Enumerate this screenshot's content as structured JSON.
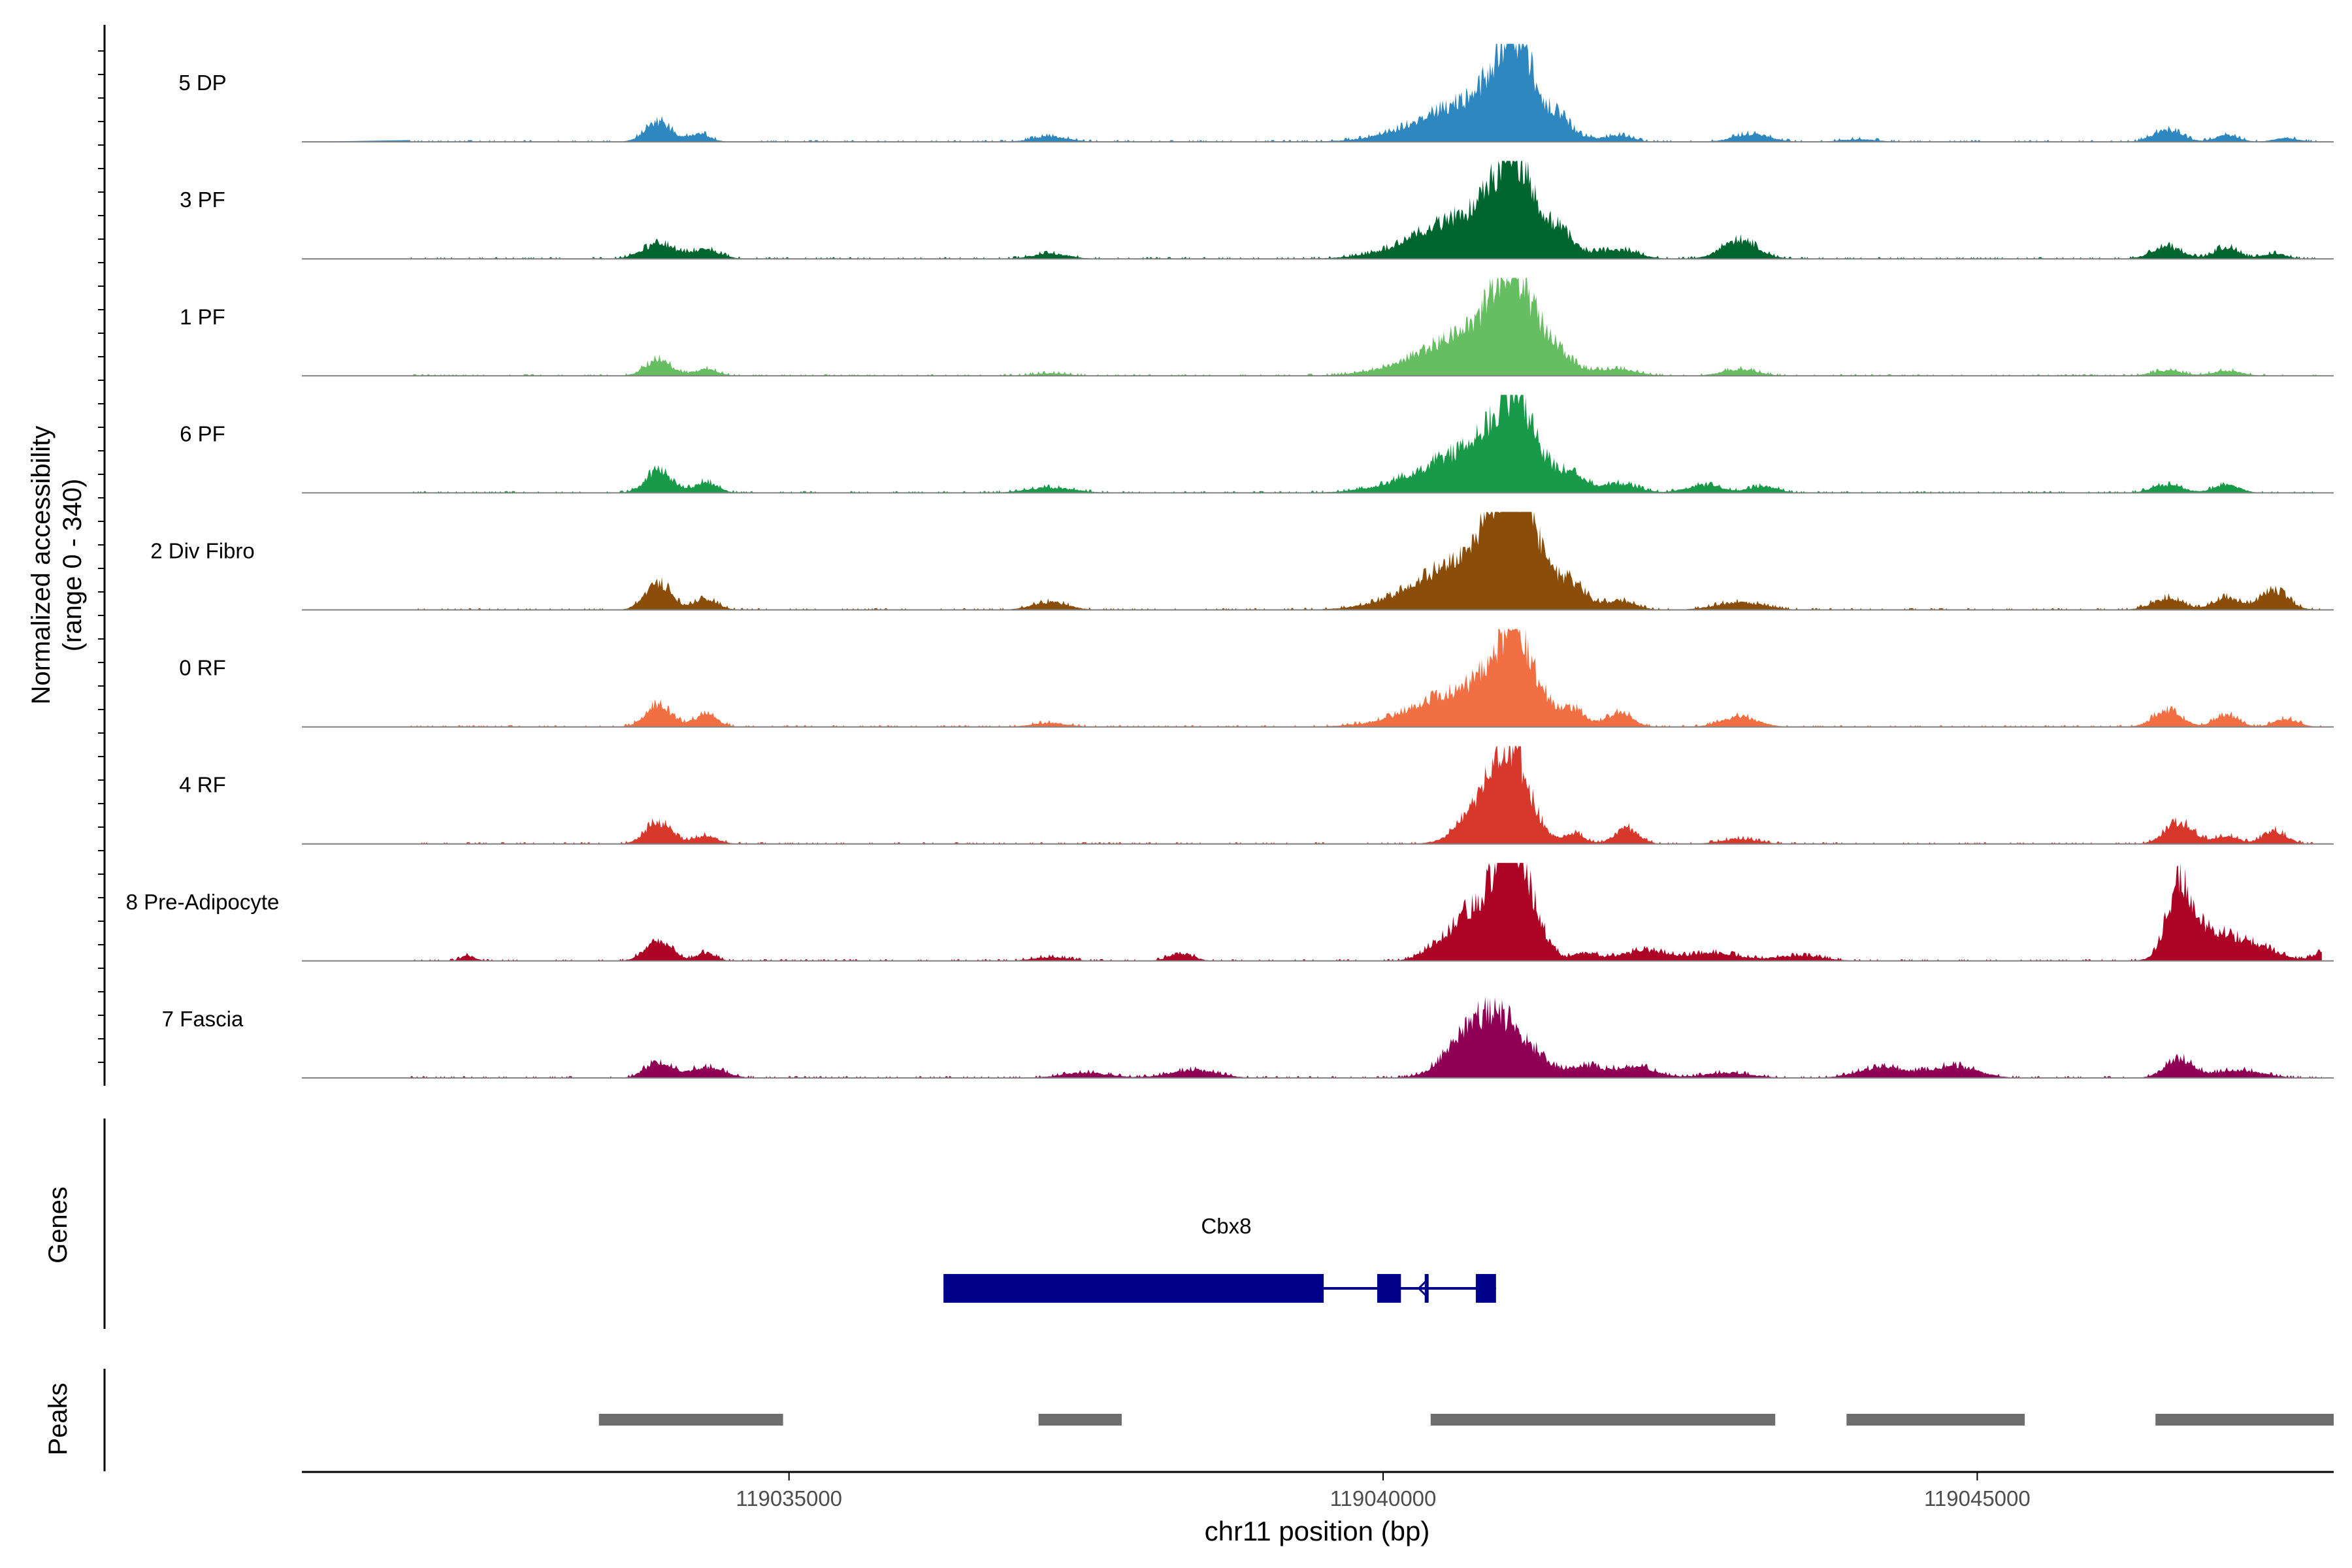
{
  "chart_data": {
    "type": "area",
    "title": "",
    "ylabel": [
      "Normalized accessibility",
      "(range 0 - 340)"
    ],
    "ylim": [
      0,
      340
    ],
    "xlabel": "chr11 position (bp)",
    "xlim": [
      119030900,
      119048000
    ],
    "ticks": [
      119035000,
      119040000,
      119045000
    ],
    "tick_labels": [
      "119035000",
      "119040000",
      "119045000"
    ],
    "series": [
      {
        "name": "5 DP",
        "color": "#2F87C0",
        "peaks": [
          [
            119033900,
            75,
            110
          ],
          [
            119034250,
            30,
            90
          ],
          [
            119037200,
            20,
            150
          ],
          [
            119040800,
            150,
            450
          ],
          [
            119041100,
            270,
            160
          ],
          [
            119041500,
            45,
            80
          ],
          [
            119042000,
            20,
            100
          ],
          [
            119043100,
            30,
            150
          ],
          [
            119044000,
            10,
            150
          ],
          [
            119046600,
            45,
            120
          ],
          [
            119047100,
            25,
            100
          ],
          [
            119047600,
            15,
            100
          ]
        ]
      },
      {
        "name": "3 PF",
        "color": "#006630",
        "peaks": [
          [
            119033900,
            55,
            140
          ],
          [
            119034300,
            35,
            120
          ],
          [
            119037200,
            20,
            150
          ],
          [
            119040800,
            170,
            450
          ],
          [
            119041100,
            240,
            160
          ],
          [
            119041500,
            55,
            100
          ],
          [
            119042000,
            30,
            150
          ],
          [
            119043000,
            70,
            150
          ],
          [
            119046600,
            45,
            130
          ],
          [
            119047100,
            45,
            100
          ],
          [
            119047500,
            20,
            100
          ]
        ]
      },
      {
        "name": "1 PF",
        "color": "#67BD62",
        "peaks": [
          [
            119033900,
            60,
            110
          ],
          [
            119034300,
            25,
            100
          ],
          [
            119037200,
            10,
            150
          ],
          [
            119040800,
            160,
            450
          ],
          [
            119041100,
            250,
            180
          ],
          [
            119041500,
            30,
            100
          ],
          [
            119042000,
            20,
            150
          ],
          [
            119043000,
            25,
            150
          ],
          [
            119046600,
            20,
            130
          ],
          [
            119047100,
            20,
            120
          ]
        ]
      },
      {
        "name": "6 PF",
        "color": "#199A48",
        "peaks": [
          [
            119033900,
            80,
            110
          ],
          [
            119034300,
            40,
            100
          ],
          [
            119037200,
            20,
            200
          ],
          [
            119040800,
            160,
            450
          ],
          [
            119041100,
            230,
            170
          ],
          [
            119041600,
            50,
            90
          ],
          [
            119042000,
            30,
            150
          ],
          [
            119042700,
            30,
            150
          ],
          [
            119043200,
            25,
            120
          ],
          [
            119046600,
            30,
            130
          ],
          [
            119047100,
            30,
            110
          ]
        ]
      },
      {
        "name": "2 Div Fibro",
        "color": "#8B4E0A",
        "peaks": [
          [
            119033900,
            100,
            110
          ],
          [
            119034300,
            40,
            100
          ],
          [
            119037200,
            30,
            150
          ],
          [
            119040800,
            200,
            450
          ],
          [
            119041100,
            330,
            180
          ],
          [
            119041600,
            60,
            100
          ],
          [
            119042000,
            30,
            120
          ],
          [
            119043000,
            30,
            200
          ],
          [
            119046600,
            45,
            130
          ],
          [
            119047100,
            45,
            110
          ],
          [
            119047500,
            70,
            120
          ]
        ]
      },
      {
        "name": "0 RF",
        "color": "#F26F44",
        "peaks": [
          [
            119033900,
            80,
            110
          ],
          [
            119034300,
            45,
            100
          ],
          [
            119037200,
            15,
            150
          ],
          [
            119040800,
            150,
            450
          ],
          [
            119041100,
            230,
            160
          ],
          [
            119041600,
            40,
            90
          ],
          [
            119042000,
            50,
            100
          ],
          [
            119043000,
            40,
            150
          ],
          [
            119046600,
            60,
            120
          ],
          [
            119047100,
            45,
            100
          ],
          [
            119047600,
            30,
            100
          ]
        ]
      },
      {
        "name": "4 RF",
        "color": "#D8372B",
        "peaks": [
          [
            119033900,
            80,
            110
          ],
          [
            119034300,
            30,
            100
          ],
          [
            119040900,
            180,
            200
          ],
          [
            119041100,
            230,
            150
          ],
          [
            119041600,
            40,
            90
          ],
          [
            119042050,
            60,
            100
          ],
          [
            119043000,
            20,
            150
          ],
          [
            119046700,
            80,
            120
          ],
          [
            119047100,
            30,
            100
          ],
          [
            119047500,
            50,
            100
          ]
        ]
      },
      {
        "name": "8 Pre-Adipocyte",
        "color": "#AD0426",
        "peaks": [
          [
            119032300,
            20,
            60
          ],
          [
            119033900,
            80,
            110
          ],
          [
            119034300,
            30,
            80
          ],
          [
            119037200,
            15,
            150
          ],
          [
            119038300,
            30,
            100
          ],
          [
            119040500,
            60,
            150
          ],
          [
            119040800,
            190,
            160
          ],
          [
            119041050,
            340,
            110
          ],
          [
            119041200,
            200,
            140
          ],
          [
            119041700,
            30,
            100
          ],
          [
            119042200,
            40,
            200
          ],
          [
            119042800,
            30,
            200
          ],
          [
            119043500,
            20,
            200
          ],
          [
            119046700,
            230,
            100
          ],
          [
            119046900,
            100,
            200
          ],
          [
            119047300,
            60,
            200
          ],
          [
            119047900,
            30,
            80
          ]
        ]
      },
      {
        "name": "7 Fascia",
        "color": "#8F0055",
        "peaks": [
          [
            119033900,
            60,
            110
          ],
          [
            119034300,
            40,
            150
          ],
          [
            119037500,
            20,
            200
          ],
          [
            119038400,
            30,
            200
          ],
          [
            119040700,
            90,
            200
          ],
          [
            119041000,
            200,
            250
          ],
          [
            119041700,
            40,
            120
          ],
          [
            119042100,
            45,
            180
          ],
          [
            119042900,
            20,
            200
          ],
          [
            119044200,
            40,
            200
          ],
          [
            119044800,
            45,
            200
          ],
          [
            119046700,
            70,
            120
          ],
          [
            119047200,
            30,
            200
          ]
        ]
      }
    ],
    "panels": {
      "genes_label": "Genes",
      "peaks_label": "Peaks"
    },
    "gene": {
      "name": "Cbx8",
      "color": "#00008B",
      "start": 119036300,
      "end": 119040950,
      "exons": [
        [
          119036300,
          119039500
        ],
        [
          119039950,
          119040150
        ],
        [
          119040350,
          119040380
        ],
        [
          119040780,
          119040950
        ]
      ]
    },
    "peak_regions": {
      "color": "#6E6E6E",
      "regions": [
        [
          119033400,
          119034950
        ],
        [
          119037100,
          119037800
        ],
        [
          119040400,
          119043300
        ],
        [
          119043900,
          119045400
        ],
        [
          119046500,
          119048000
        ]
      ]
    }
  }
}
